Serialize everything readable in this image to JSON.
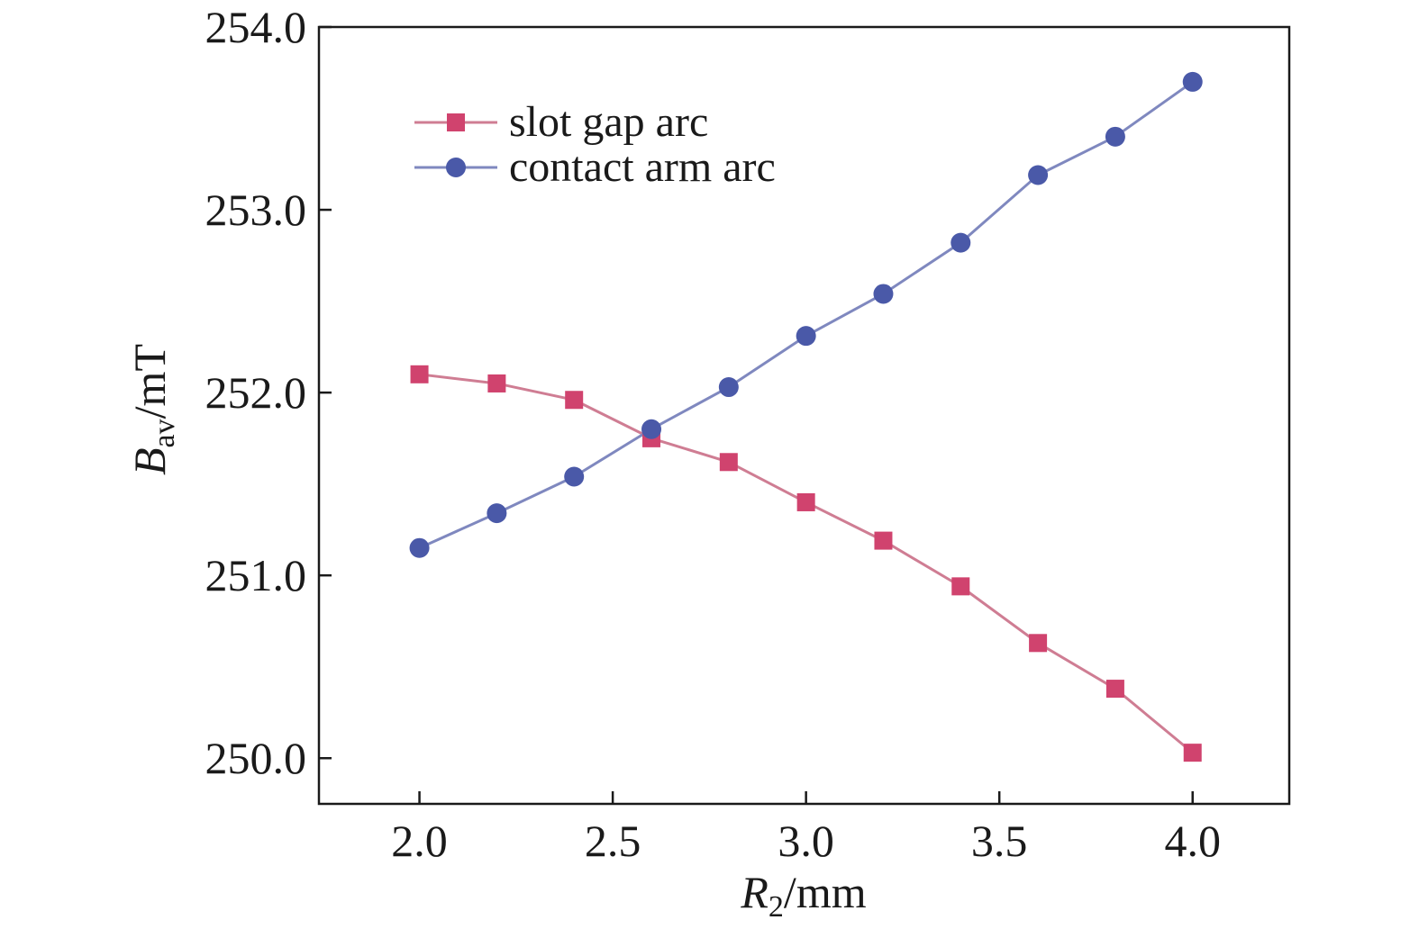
{
  "chart_data": {
    "type": "line",
    "x": [
      2.0,
      2.2,
      2.4,
      2.6,
      2.8,
      3.0,
      3.2,
      3.4,
      3.6,
      3.8,
      4.0
    ],
    "xlim": [
      1.74,
      4.25
    ],
    "ylim": [
      249.75,
      254.0
    ],
    "xticks": [
      "2.0",
      "2.5",
      "3.0",
      "3.5",
      "4.0"
    ],
    "yticks": [
      "250.0",
      "251.0",
      "252.0",
      "253.0",
      "254.0"
    ],
    "xlabel": {
      "main": "R",
      "sub": "2",
      "unit": "/mm"
    },
    "ylabel": {
      "main": "B",
      "sub": "av",
      "unit": "/mT"
    },
    "grid": false,
    "legend_position": "top-left",
    "series": [
      {
        "name": "slot gap arc",
        "marker": "square",
        "color": "#d0436e",
        "line_color": "#cf7d93",
        "values": [
          252.1,
          252.05,
          251.96,
          251.75,
          251.62,
          251.4,
          251.19,
          250.94,
          250.63,
          250.38,
          250.03
        ]
      },
      {
        "name": "contact arm arc",
        "marker": "circle",
        "color": "#4a59a8",
        "line_color": "#7f88bf",
        "values": [
          251.15,
          251.34,
          251.54,
          251.8,
          252.03,
          252.31,
          252.54,
          252.82,
          253.19,
          253.4,
          253.7
        ]
      }
    ]
  }
}
